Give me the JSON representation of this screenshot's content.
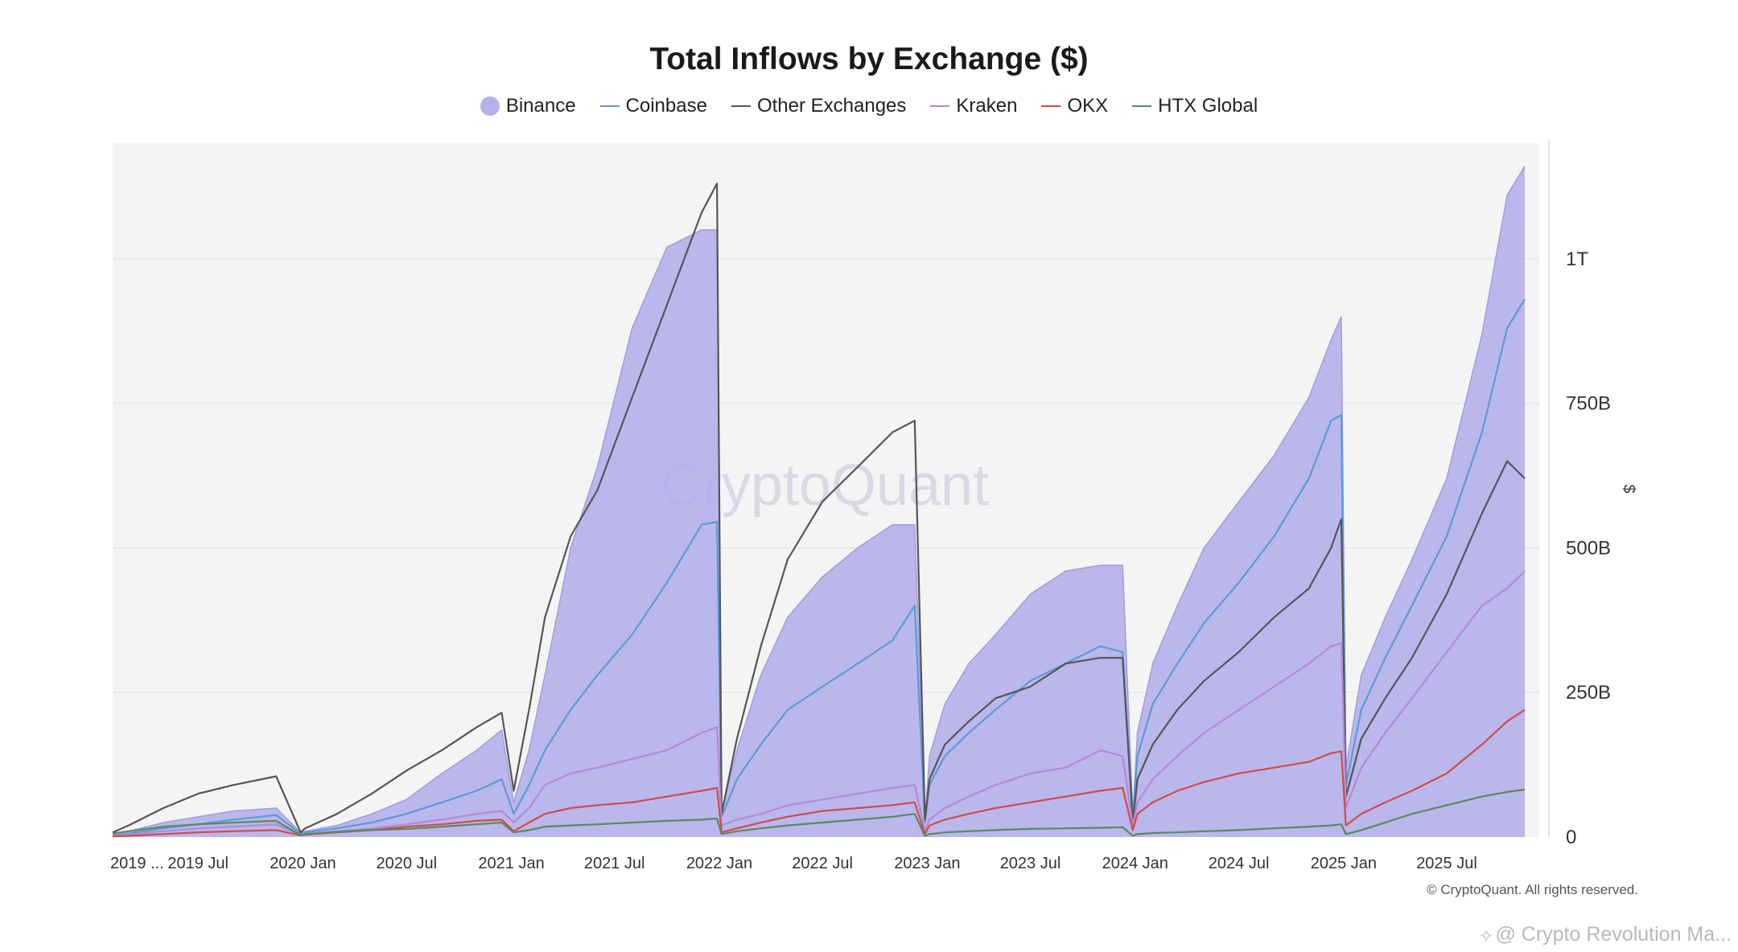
{
  "chart_data": {
    "type": "area",
    "title": "Total Inflows by Exchange ($)",
    "ylabel": "$",
    "xlabel": "",
    "ylim": [
      0,
      1200
    ],
    "y_unit": "B",
    "y_ticks": [
      {
        "value": 0,
        "label": "0"
      },
      {
        "value": 250,
        "label": "250B"
      },
      {
        "value": 500,
        "label": "500B"
      },
      {
        "value": 750,
        "label": "750B"
      },
      {
        "value": 1000,
        "label": "1T"
      }
    ],
    "x_ticks": [
      {
        "date": "2019-02-01",
        "label": "2019 ..."
      },
      {
        "date": "2019-07-01",
        "label": "2019 Jul"
      },
      {
        "date": "2020-01-01",
        "label": "2020 Jan"
      },
      {
        "date": "2020-07-01",
        "label": "2020 Jul"
      },
      {
        "date": "2021-01-01",
        "label": "2021 Jan"
      },
      {
        "date": "2021-07-01",
        "label": "2021 Jul"
      },
      {
        "date": "2022-01-01",
        "label": "2022 Jan"
      },
      {
        "date": "2022-07-01",
        "label": "2022 Jul"
      },
      {
        "date": "2023-01-01",
        "label": "2023 Jan"
      },
      {
        "date": "2023-07-01",
        "label": "2023 Jul"
      },
      {
        "date": "2024-01-01",
        "label": "2024 Jan"
      },
      {
        "date": "2024-07-01",
        "label": "2024 Jul"
      },
      {
        "date": "2025-01-01",
        "label": "2025 Jan"
      },
      {
        "date": "2025-07-01",
        "label": "2025 Jul"
      }
    ],
    "x_range": [
      "2019-02-01",
      "2025-11-15"
    ],
    "legend_position": "top-center",
    "grid": true,
    "watermark": "CryptoQuant",
    "x": [
      "2019-02-01",
      "2019-03-01",
      "2019-05-01",
      "2019-07-01",
      "2019-09-01",
      "2019-11-15",
      "2019-12-28",
      "2020-01-05",
      "2020-03-01",
      "2020-05-01",
      "2020-07-01",
      "2020-09-01",
      "2020-11-01",
      "2020-12-15",
      "2021-01-05",
      "2021-02-01",
      "2021-03-01",
      "2021-04-15",
      "2021-06-01",
      "2021-08-01",
      "2021-10-01",
      "2021-12-01",
      "2021-12-28",
      "2022-01-05",
      "2022-02-01",
      "2022-03-15",
      "2022-05-01",
      "2022-07-01",
      "2022-09-01",
      "2022-11-01",
      "2022-12-10",
      "2022-12-28",
      "2023-01-05",
      "2023-02-01",
      "2023-03-15",
      "2023-05-01",
      "2023-07-01",
      "2023-09-01",
      "2023-11-01",
      "2023-12-10",
      "2023-12-28",
      "2024-01-05",
      "2024-02-01",
      "2024-03-15",
      "2024-05-01",
      "2024-07-01",
      "2024-09-01",
      "2024-11-01",
      "2024-12-10",
      "2024-12-28",
      "2025-01-05",
      "2025-02-01",
      "2025-03-15",
      "2025-05-01",
      "2025-07-01",
      "2025-09-01",
      "2025-10-15",
      "2025-11-15"
    ],
    "series": [
      {
        "name": "Binance",
        "style": "area",
        "color": "#b4b0eb",
        "values": [
          5,
          10,
          25,
          35,
          45,
          50,
          8,
          10,
          20,
          40,
          65,
          110,
          150,
          185,
          60,
          150,
          280,
          500,
          640,
          880,
          1020,
          1050,
          1050,
          45,
          150,
          280,
          380,
          450,
          500,
          540,
          540,
          30,
          140,
          230,
          300,
          350,
          420,
          460,
          470,
          470,
          40,
          180,
          300,
          400,
          500,
          580,
          660,
          760,
          860,
          900,
          120,
          280,
          380,
          480,
          620,
          870,
          1110,
          1160
        ]
      },
      {
        "name": "Coinbase",
        "style": "line",
        "color": "#5b9bd5",
        "values": [
          3,
          6,
          15,
          22,
          30,
          38,
          6,
          8,
          15,
          25,
          40,
          60,
          80,
          100,
          40,
          90,
          150,
          220,
          280,
          350,
          440,
          540,
          545,
          35,
          100,
          160,
          220,
          260,
          300,
          340,
          400,
          25,
          90,
          140,
          180,
          220,
          270,
          300,
          330,
          320,
          35,
          140,
          230,
          300,
          370,
          440,
          520,
          620,
          720,
          730,
          90,
          220,
          310,
          400,
          520,
          700,
          880,
          930
        ]
      },
      {
        "name": "Other Exchanges",
        "style": "line",
        "color": "#555555",
        "values": [
          8,
          20,
          50,
          75,
          90,
          105,
          8,
          15,
          40,
          75,
          115,
          150,
          190,
          215,
          80,
          220,
          380,
          520,
          600,
          760,
          920,
          1080,
          1130,
          40,
          170,
          330,
          480,
          580,
          640,
          700,
          720,
          30,
          100,
          160,
          200,
          240,
          260,
          300,
          310,
          310,
          25,
          100,
          160,
          220,
          270,
          320,
          380,
          430,
          500,
          550,
          70,
          170,
          240,
          310,
          420,
          560,
          650,
          620
        ]
      },
      {
        "name": "Kraken",
        "style": "line",
        "color": "#b48ad6",
        "values": [
          2,
          4,
          10,
          15,
          18,
          22,
          4,
          5,
          10,
          15,
          22,
          30,
          40,
          45,
          25,
          50,
          90,
          110,
          120,
          135,
          150,
          180,
          190,
          20,
          30,
          40,
          55,
          65,
          75,
          85,
          90,
          10,
          30,
          50,
          70,
          90,
          110,
          120,
          150,
          140,
          20,
          60,
          100,
          140,
          180,
          220,
          260,
          300,
          330,
          335,
          50,
          120,
          180,
          240,
          320,
          400,
          430,
          460
        ]
      },
      {
        "name": "OKX",
        "style": "line",
        "color": "#d14b4b",
        "values": [
          1,
          2,
          5,
          8,
          10,
          12,
          3,
          4,
          8,
          12,
          18,
          22,
          28,
          30,
          10,
          25,
          40,
          50,
          55,
          60,
          70,
          80,
          85,
          8,
          15,
          25,
          35,
          45,
          50,
          55,
          60,
          5,
          20,
          30,
          40,
          50,
          60,
          70,
          80,
          85,
          12,
          40,
          60,
          80,
          95,
          110,
          120,
          130,
          145,
          148,
          20,
          40,
          60,
          80,
          110,
          160,
          200,
          220
        ]
      },
      {
        "name": "HTX Global",
        "style": "line",
        "color": "#5a8a5a",
        "values": [
          6,
          10,
          18,
          22,
          25,
          28,
          3,
          5,
          9,
          12,
          14,
          18,
          22,
          25,
          8,
          12,
          18,
          20,
          22,
          25,
          28,
          30,
          32,
          5,
          10,
          15,
          20,
          25,
          30,
          35,
          40,
          2,
          5,
          8,
          10,
          12,
          14,
          15,
          16,
          17,
          2,
          5,
          7,
          8,
          10,
          12,
          15,
          18,
          20,
          22,
          5,
          12,
          25,
          40,
          55,
          70,
          78,
          82
        ]
      }
    ],
    "note": "© CryptoQuant. All rights reserved."
  },
  "credit": "@ Crypto Revolution Ma..."
}
